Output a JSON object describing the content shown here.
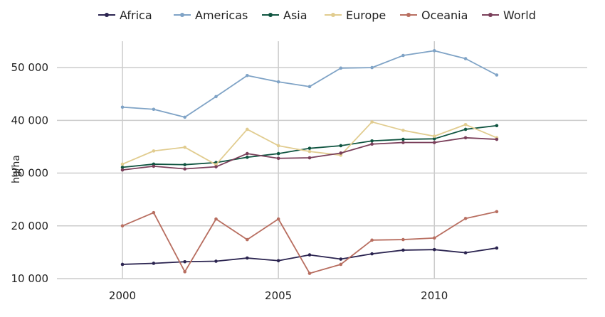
{
  "chart_data": {
    "type": "line",
    "title": "",
    "xlabel": "",
    "ylabel": "hg/ha",
    "xlim": [
      1997.9,
      2014.9
    ],
    "ylim": [
      10000,
      55000
    ],
    "x_ticks": [
      2000,
      2005,
      2010
    ],
    "y_ticks": [
      10000,
      20000,
      30000,
      40000,
      50000
    ],
    "y_tick_labels": [
      "10 000",
      "20 000",
      "30 000",
      "40 000",
      "50 000"
    ],
    "grid": true,
    "legend_position": "top",
    "x": [
      2000,
      2001,
      2002,
      2003,
      2004,
      2005,
      2006,
      2007,
      2008,
      2009,
      2010,
      2011,
      2012
    ],
    "series": [
      {
        "name": "Africa",
        "color": "#2b2450",
        "values": [
          12700,
          12900,
          13200,
          13300,
          13900,
          13400,
          14500,
          13700,
          14700,
          15400,
          15500,
          14900,
          15800
        ]
      },
      {
        "name": "Americas",
        "color": "#7fa3c6",
        "values": [
          42500,
          42100,
          40600,
          44500,
          48500,
          47300,
          46400,
          49900,
          50000,
          52300,
          53200,
          51700,
          48600
        ]
      },
      {
        "name": "Asia",
        "color": "#0f5440",
        "values": [
          31100,
          31700,
          31600,
          32000,
          33000,
          33700,
          34700,
          35200,
          36100,
          36400,
          36500,
          38300,
          39000
        ]
      },
      {
        "name": "Europe",
        "color": "#e1cc8f",
        "values": [
          31700,
          34200,
          34900,
          31600,
          38300,
          35200,
          34100,
          33400,
          39700,
          38100,
          37000,
          39200,
          36700
        ]
      },
      {
        "name": "Oceania",
        "color": "#b86e60",
        "values": [
          20000,
          22500,
          11300,
          21300,
          17400,
          21300,
          11000,
          12700,
          17300,
          17400,
          17700,
          21400,
          22700
        ]
      },
      {
        "name": "World",
        "color": "#7a3f5a",
        "values": [
          30600,
          31300,
          30800,
          31200,
          33700,
          32800,
          32900,
          33800,
          35500,
          35800,
          35800,
          36700,
          36400
        ]
      }
    ]
  }
}
